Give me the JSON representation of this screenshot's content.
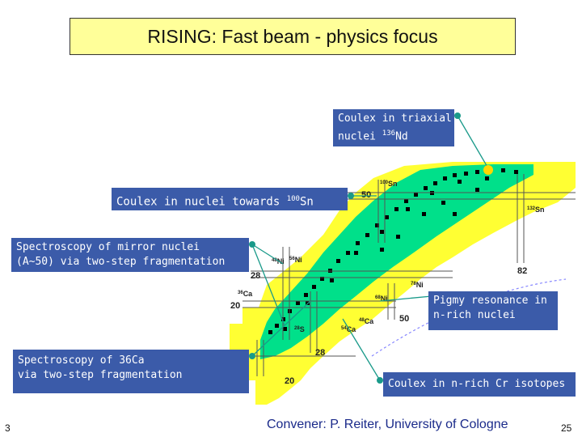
{
  "title": "RISING: Fast beam - physics focus",
  "labels": {
    "triaxial": {
      "line1": "Coulex in triaxial",
      "line2_prefix": "nuclei ",
      "line2_mass": "136",
      "line2_elem": "Nd"
    },
    "sn": {
      "prefix": "Coulex in nuclei towards ",
      "mass": "100",
      "elem": "Sn"
    },
    "mirror": {
      "line1": "Spectroscopy of mirror nuclei",
      "line2": "(A~50) via two-step fragmentation"
    },
    "pigmy": {
      "line1": "Pigmy resonance in",
      "line2": "n-rich nuclei"
    },
    "ca36": {
      "line1": "Spectroscopy of 36Ca",
      "line2": "via two-step fragmentation"
    },
    "cr": {
      "text": "Coulex in n-rich Cr isotopes"
    }
  },
  "chart": {
    "magic": {
      "m50": "50",
      "m82": "82",
      "m28a": "28",
      "m20a": "20",
      "m28b": "28",
      "m20b": "20",
      "m50b": "50"
    },
    "nuclei": {
      "sn100": {
        "mass": "100",
        "elem": "Sn"
      },
      "sn132": {
        "mass": "132",
        "elem": "Sn"
      },
      "ni48": {
        "mass": "48",
        "elem": "Ni"
      },
      "ni56": {
        "mass": "56",
        "elem": "Ni"
      },
      "ni78": {
        "mass": "78",
        "elem": "Ni"
      },
      "ni68": {
        "mass": "68",
        "elem": "Ni"
      },
      "ca36": {
        "mass": "36",
        "elem": "Ca"
      },
      "ca48": {
        "mass": "48",
        "elem": "Ca"
      },
      "ca54": {
        "mass": "54",
        "elem": "Ca"
      },
      "s28": {
        "mass": "28",
        "elem": "S"
      }
    }
  },
  "footer": {
    "convener": "Convener: P. Reiter, University of Cologne",
    "page_left": "3",
    "page_right": "25"
  },
  "colors": {
    "title_bg": "#ffff99",
    "label_bg": "#3b5ba9",
    "stable": "#00e08a",
    "unstable": "#ffff33",
    "connector": "#1a9a8a",
    "dot": "#1a9a8a",
    "footer_text": "#1a2a8a"
  }
}
